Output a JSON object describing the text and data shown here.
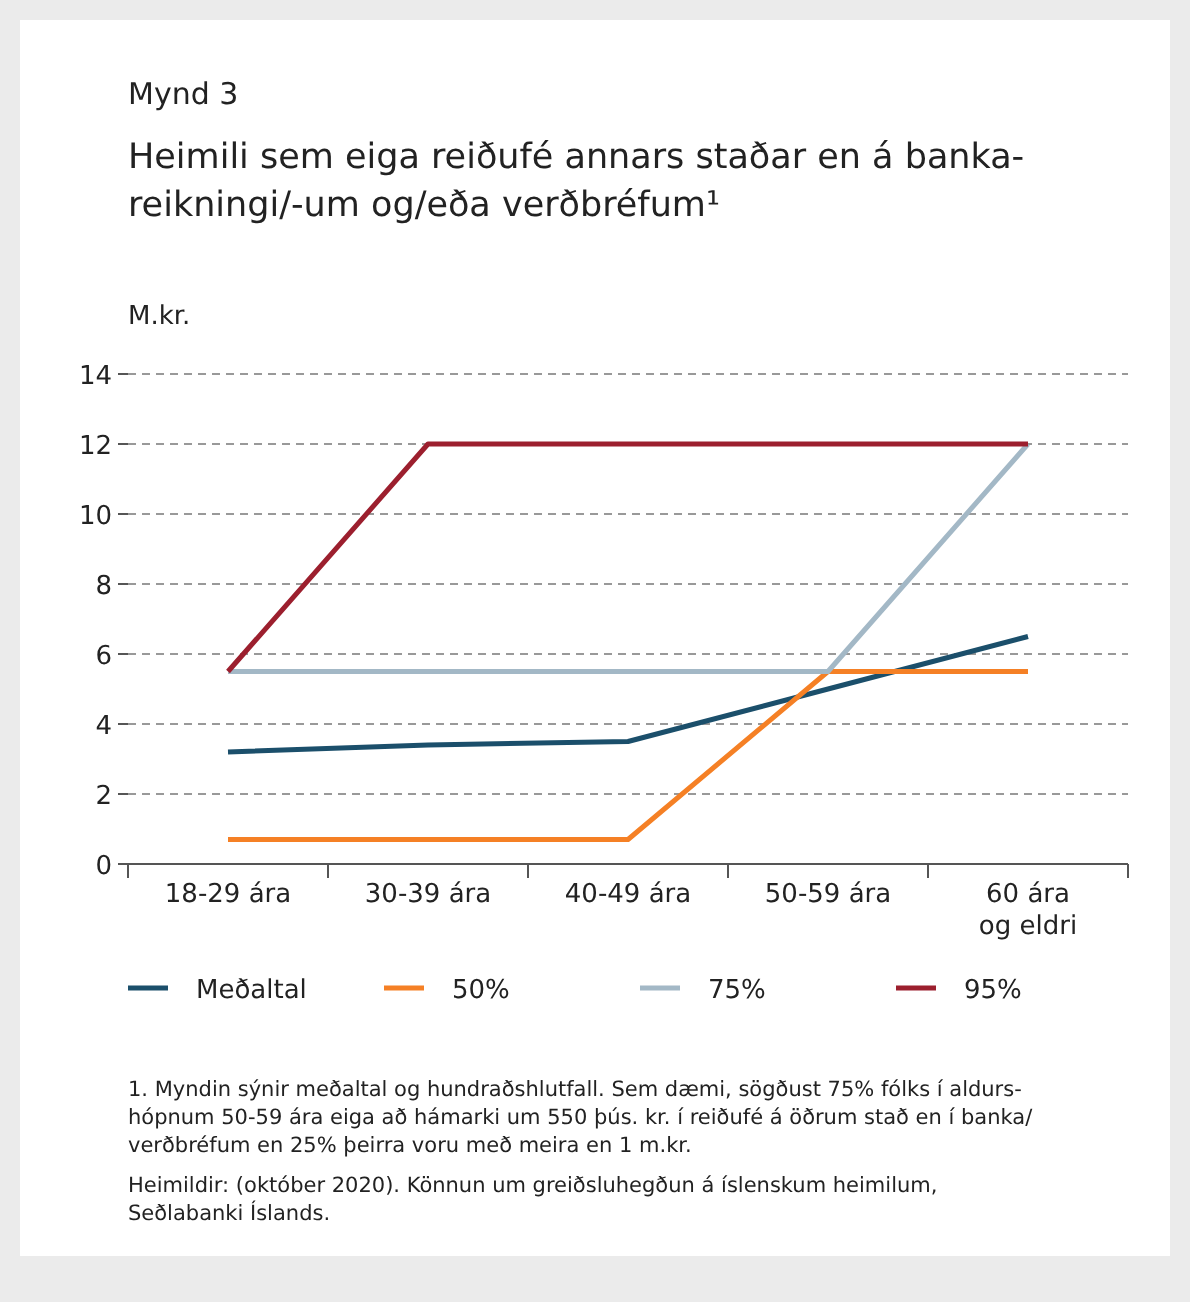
{
  "chart_data": {
    "type": "line",
    "subtitle": "Mynd 3",
    "title": "Heimili sem eiga reiðufé annars staðar en á banka-\nreikningi/-um og/eða verðbréfum¹",
    "ylabel": "M.kr.",
    "categories": [
      "18-29 ára",
      "30-39 ára",
      "40-49 ára",
      "50-59 ára",
      "60 ára\nog eldri"
    ],
    "series": [
      {
        "name": "Meðaltal",
        "color": "#1b4f6b",
        "values": [
          3.2,
          3.4,
          3.5,
          5.0,
          6.5
        ]
      },
      {
        "name": "50%",
        "color": "#f58025",
        "values": [
          0.7,
          0.7,
          0.7,
          5.5,
          5.5
        ]
      },
      {
        "name": "75%",
        "color": "#a3b8c6",
        "values": [
          5.5,
          5.5,
          5.5,
          5.5,
          12
        ]
      },
      {
        "name": "95%",
        "color": "#9c1f2e",
        "values": [
          5.5,
          12,
          12,
          12,
          12
        ]
      }
    ],
    "ylim": [
      0,
      14
    ],
    "yticks": [
      0,
      2,
      4,
      6,
      8,
      10,
      12,
      14
    ],
    "grid": "y",
    "legend": "bottom",
    "marker": "none",
    "line_style": "solid",
    "annotations": [
      "1. Myndin sýnir meðaltal og hundraðshlutfall. Sem dæmi, sögðust 75% fólks í aldurs-\nhópnum 50-59 ára eiga að hámarki um 550 þús. kr. í reiðufé á öðrum stað en í banka/\nverðbréfum en 25% þeirra voru með meira en 1 m.kr.",
      "Heimildir: (október 2020). Könnun um greiðsluhegðun á íslenskum heimilum,\nSeðlabanki Íslands."
    ]
  }
}
